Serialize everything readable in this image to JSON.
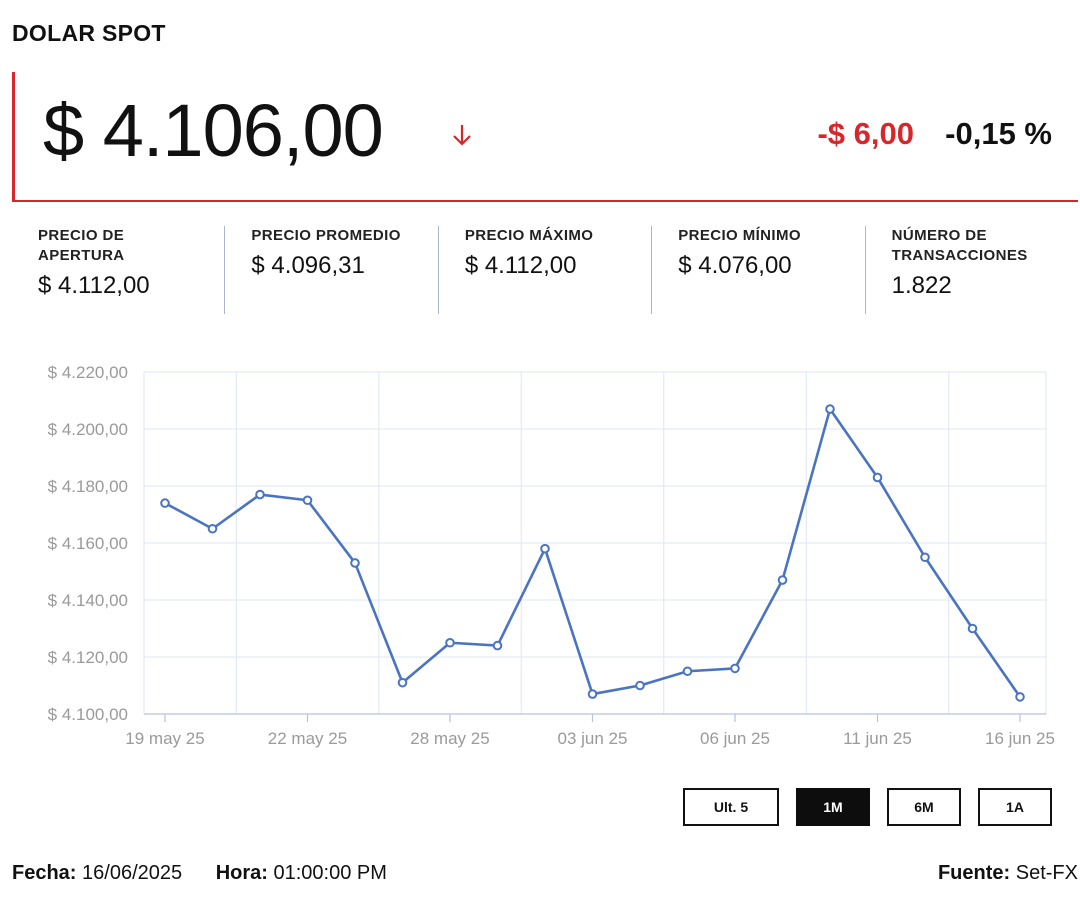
{
  "header": {
    "title": "DOLAR SPOT",
    "price": "$ 4.106,00",
    "direction_icon": "arrow-down-icon",
    "change_abs": "-$ 6,00",
    "change_pct": "-0,15 %"
  },
  "stats": [
    {
      "label": "PRECIO DE APERTURA",
      "value": "$ 4.112,00"
    },
    {
      "label": "PRECIO PROMEDIO",
      "value": "$ 4.096,31"
    },
    {
      "label": "PRECIO MÁXIMO",
      "value": "$ 4.112,00"
    },
    {
      "label": "PRECIO MÍNIMO",
      "value": "$ 4.076,00"
    },
    {
      "label": "NÚMERO DE TRANSACCIONES",
      "value": "1.822"
    }
  ],
  "chart_data": {
    "type": "line",
    "title": "",
    "xlabel": "",
    "ylabel": "",
    "ylim": [
      4100,
      4220
    ],
    "y_ticks": [
      4100,
      4120,
      4140,
      4160,
      4180,
      4200,
      4220
    ],
    "y_tick_labels": [
      "$ 4.100,00",
      "$ 4.120,00",
      "$ 4.140,00",
      "$ 4.160,00",
      "$ 4.180,00",
      "$ 4.200,00",
      "$ 4.220,00"
    ],
    "x_tick_labels": [
      "19 may 25",
      "22 may 25",
      "28 may 25",
      "03 jun 25",
      "06 jun 25",
      "11 jun 25",
      "16 jun 25"
    ],
    "x_tick_index": [
      0,
      3,
      6,
      9,
      12,
      15,
      18
    ],
    "grid": true,
    "series": [
      {
        "color": "#4a74c2",
        "values": [
          4174,
          4165,
          4177,
          4175,
          4153,
          4111,
          4125,
          4124,
          4158,
          4107,
          4110,
          4115,
          4116,
          4147,
          4207,
          4183,
          4155,
          4130,
          4106
        ]
      }
    ]
  },
  "range_buttons": [
    {
      "label": "Ult. 5",
      "active": false
    },
    {
      "label": "1M",
      "active": true
    },
    {
      "label": "6M",
      "active": false
    },
    {
      "label": "1A",
      "active": false
    }
  ],
  "footer": {
    "date_label": "Fecha:",
    "date_value": "16/06/2025",
    "time_label": "Hora:",
    "time_value": "01:00:00 PM",
    "source_label": "Fuente:",
    "source_value": "Set-FX"
  },
  "colors": {
    "accent_red": "#d8262b",
    "line_blue": "#4a74c2",
    "grid": "#dde6f3"
  }
}
